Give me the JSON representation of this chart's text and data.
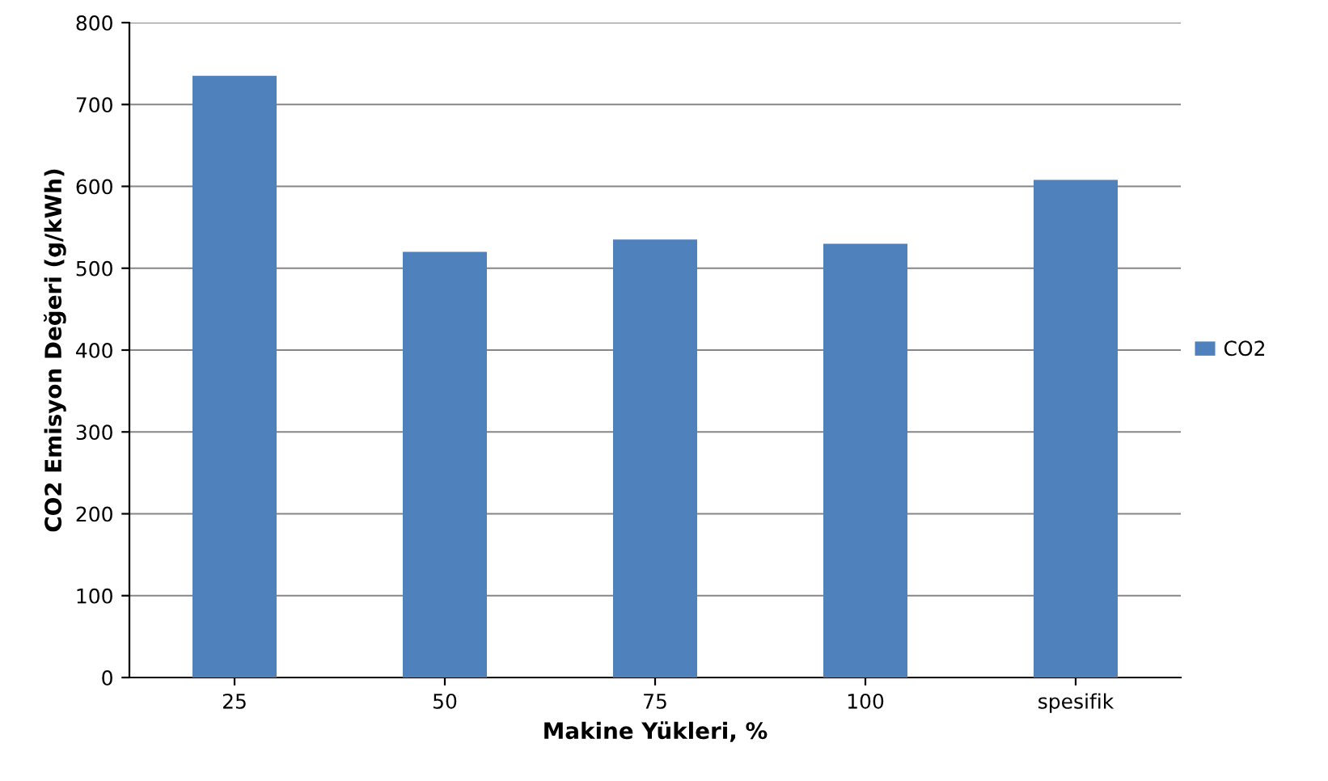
{
  "chart_data": {
    "type": "bar",
    "xlabel": "Makine Yükleri, %",
    "ylabel": "CO2 Emisyon Değeri (g/kWh)",
    "categories": [
      "25",
      "50",
      "75",
      "100",
      "spesifik"
    ],
    "series": [
      {
        "name": "CO2",
        "color": "#4f81bd",
        "values": [
          735,
          520,
          535,
          530,
          608
        ]
      }
    ],
    "ylim": [
      0,
      800
    ],
    "yticks": [
      0,
      100,
      200,
      300,
      400,
      500,
      600,
      700,
      800
    ],
    "grid": "y",
    "legend": "right"
  }
}
